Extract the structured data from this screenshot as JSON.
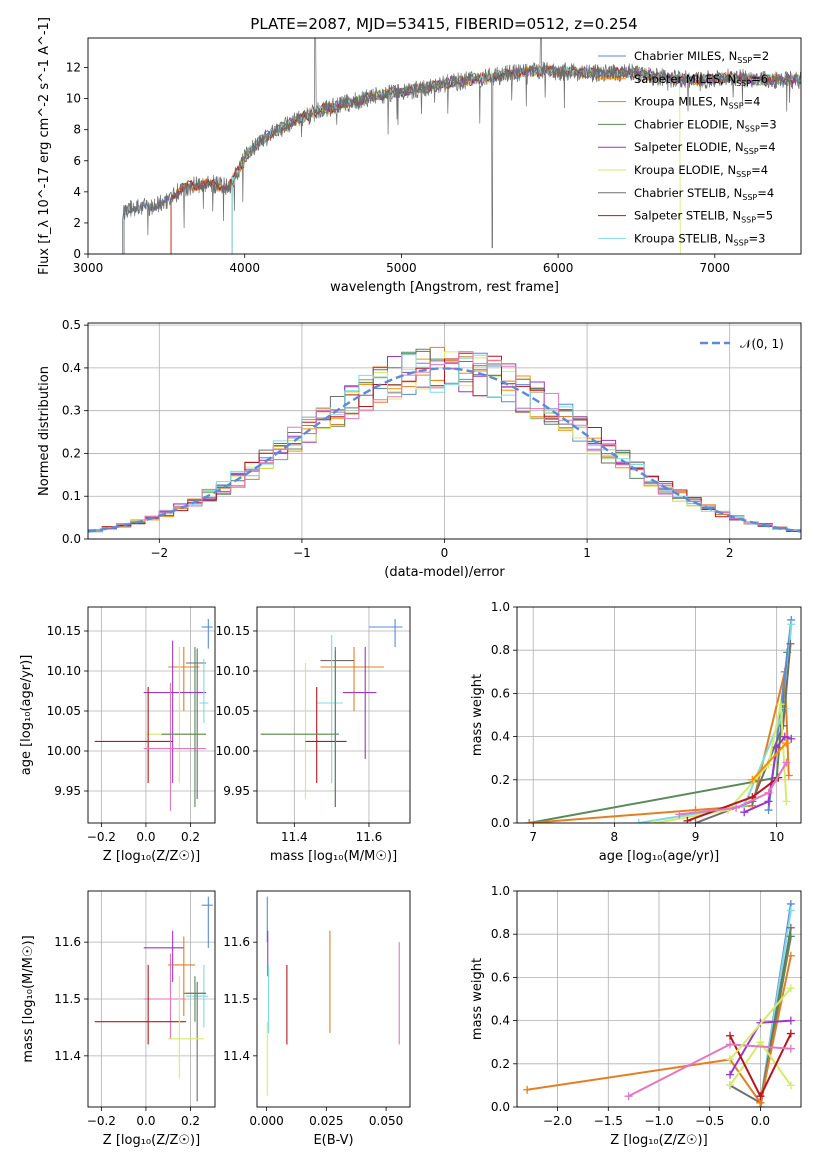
{
  "title": "PLATE=2087, MJD=53415, FIBERID=0512, z=0.254",
  "colors": {
    "cm": "#5b8bd6",
    "sm": "#ff8c00",
    "km": "#e37f22",
    "ce": "#5a8a5a",
    "se": "#9a37c5",
    "ke": "#d6ea6b",
    "cs": "#6e6e6e",
    "ss": "#b5171d",
    "ks": "#7fdbe3",
    "extra_pink": "#e377c2",
    "extra_gray": "#4d4d4d"
  },
  "legend": {
    "spectrum": [
      {
        "key": "cm",
        "text": "Chabrier MILES, N",
        "sub": "SSP",
        "val": "=2"
      },
      {
        "key": "sm",
        "text": "Salpeter MILES, N",
        "sub": "SSP",
        "val": "=6"
      },
      {
        "key": "km",
        "text": "Kroupa MILES, N",
        "sub": "SSP",
        "val": "=4"
      },
      {
        "key": "ce",
        "text": "Chabrier ELODIE, N",
        "sub": "SSP",
        "val": "=3"
      },
      {
        "key": "se",
        "text": "Salpeter ELODIE, N",
        "sub": "SSP",
        "val": "=4"
      },
      {
        "key": "ke",
        "text": "Kroupa ELODIE, N",
        "sub": "SSP",
        "val": "=4"
      },
      {
        "key": "cs",
        "text": "Chabrier STELIB, N",
        "sub": "SSP",
        "val": "=4"
      },
      {
        "key": "ss",
        "text": "Salpeter STELIB, N",
        "sub": "SSP",
        "val": "=5"
      },
      {
        "key": "ks",
        "text": "Kroupa STELIB, N",
        "sub": "SSP",
        "val": "=3"
      }
    ],
    "histogram": "𝒩(0, 1)"
  },
  "chart_data": [
    {
      "id": "spectrum",
      "type": "line",
      "xlabel": "wavelength [Angstrom, rest frame]",
      "ylabel": "Flux [f_λ 10^-17 erg cm^-2 s^-1 A^-1]",
      "xlim": [
        3000,
        7550
      ],
      "ylim": [
        0,
        13.9
      ],
      "xticks": [
        3000,
        4000,
        5000,
        6000,
        7000
      ],
      "yticks": [
        0,
        2,
        4,
        6,
        8,
        10,
        12
      ],
      "grid": false,
      "legend_position": "top-right",
      "data_continuum": {
        "x": [
          3220,
          3300,
          3400,
          3500,
          3600,
          3700,
          3800,
          3900,
          4000,
          4100,
          4300,
          4500,
          4700,
          4900,
          5100,
          5300,
          5500,
          5700,
          5900,
          6100,
          6300,
          6500,
          6700,
          6900,
          7100,
          7300
        ],
        "y": [
          2.7,
          3.0,
          3.0,
          3.4,
          4.2,
          4.5,
          4.5,
          4.3,
          6.2,
          7.3,
          8.5,
          9.3,
          9.8,
          10.3,
          10.6,
          11.0,
          11.3,
          11.6,
          11.8,
          11.7,
          11.6,
          11.7,
          11.3,
          11.2,
          11.4,
          11.2
        ]
      },
      "model_starts": {
        "cm": 3230,
        "sm": 3530,
        "km": 3530,
        "ce": 3920,
        "se": 3920,
        "ke": 3920,
        "cs": 3230,
        "ss": 3530,
        "ks": 3920
      },
      "model_end_ke": 6780
    },
    {
      "id": "residual_hist",
      "type": "bar",
      "xlabel": "(data-model)/error",
      "ylabel": "Normed distribution",
      "xlim": [
        -2.5,
        2.5
      ],
      "ylim": [
        0,
        0.505
      ],
      "xticks": [
        -2,
        -1,
        0,
        1,
        2
      ],
      "yticks": [
        0.0,
        0.1,
        0.2,
        0.3,
        0.4,
        0.5
      ],
      "grid": true,
      "legend_position": "top-right",
      "bin_width": 0.1,
      "bin_start": -2.5,
      "series_keys": [
        "cm",
        "sm",
        "km",
        "ce",
        "se",
        "ke",
        "cs",
        "ss",
        "ks",
        "extra_pink"
      ],
      "reference_curve": "normal(0,1)"
    },
    {
      "id": "age_vs_Z",
      "type": "scatter",
      "xlabel": "Z [log10(Z/Z☉)]",
      "ylabel": "age  [log10(age/yr)]",
      "xlim": [
        -0.26,
        0.31
      ],
      "ylim": [
        9.91,
        10.18
      ],
      "xticks": [
        -0.2,
        0.0,
        0.2
      ],
      "xticklabels": [
        "−0.2",
        "0.0",
        "0.2"
      ],
      "yticks": [
        9.95,
        10.0,
        10.05,
        10.1,
        10.15
      ],
      "grid": true,
      "points": [
        {
          "k": "cm",
          "x": 0.28,
          "y": 10.155,
          "ex": [
            0.25,
            0.3
          ],
          "ey": [
            10.128,
            10.165
          ]
        },
        {
          "k": "km",
          "x": 0.17,
          "y": 10.105,
          "ex": [
            0.1,
            0.24
          ],
          "ey": [
            10.05,
            10.13
          ]
        },
        {
          "k": "cs",
          "x": 0.23,
          "y": 10.11,
          "ex": [
            0.18,
            0.27
          ],
          "ey": [
            9.94,
            10.128
          ]
        },
        {
          "k": "se",
          "x": 0.12,
          "y": 10.073,
          "ex": [
            -0.01,
            0.27
          ],
          "ey": [
            9.96,
            10.138
          ]
        },
        {
          "k": "ks",
          "x": 0.26,
          "y": 10.06,
          "ex": [
            0.24,
            0.28
          ],
          "ey": [
            10.035,
            10.115
          ]
        },
        {
          "k": "ke",
          "x": 0.15,
          "y": 10.021,
          "ex": [
            0.0,
            0.27
          ],
          "ey": [
            9.96,
            10.13
          ]
        },
        {
          "k": "ss",
          "x": 0.01,
          "y": 10.012,
          "ex": [
            -0.23,
            0.12
          ],
          "ey": [
            9.96,
            10.08
          ]
        },
        {
          "k": "extra_pink",
          "x": 0.11,
          "y": 10.003,
          "ex": [
            -0.01,
            0.27
          ],
          "ey": [
            9.925,
            10.085
          ]
        },
        {
          "k": "ce",
          "x": 0.22,
          "y": 10.021,
          "ex": [
            0.07,
            0.27
          ],
          "ey": [
            9.93,
            10.13
          ]
        }
      ]
    },
    {
      "id": "age_vs_mass",
      "type": "scatter",
      "xlabel": "mass [log10(M/M☉)]",
      "ylabel": "",
      "xlim": [
        11.3,
        11.71
      ],
      "ylim": [
        9.91,
        10.18
      ],
      "xticks": [
        11.4,
        11.6
      ],
      "yticks": [
        9.95,
        10.0,
        10.05,
        10.1,
        10.15
      ],
      "grid": true,
      "points": [
        {
          "k": "cm",
          "x": 11.67,
          "y": 10.155,
          "ex": [
            11.6,
            11.69
          ],
          "ey": [
            10.13,
            10.165
          ]
        },
        {
          "k": "km",
          "x": 11.56,
          "y": 10.105,
          "ex": [
            11.47,
            11.64
          ],
          "ey": [
            10.05,
            10.13
          ]
        },
        {
          "k": "cs",
          "x": 11.51,
          "y": 10.113,
          "ex": [
            11.47,
            11.56
          ],
          "ey": [
            9.93,
            10.125
          ]
        },
        {
          "k": "ks",
          "x": 11.5,
          "y": 10.06,
          "ex": [
            11.46,
            11.53
          ],
          "ey": [
            9.96,
            10.145
          ]
        },
        {
          "k": "se",
          "x": 11.59,
          "y": 10.073,
          "ex": [
            11.53,
            11.62
          ],
          "ey": [
            9.99,
            10.13
          ]
        },
        {
          "k": "ke",
          "x": 11.43,
          "y": 10.021,
          "ex": [
            11.31,
            11.49
          ],
          "ey": [
            9.94,
            10.11
          ]
        },
        {
          "k": "ss",
          "x": 11.46,
          "y": 10.012,
          "ex": [
            11.43,
            11.54
          ],
          "ey": [
            9.96,
            10.08
          ]
        },
        {
          "k": "ce",
          "x": 11.51,
          "y": 10.021,
          "ex": [
            11.31,
            11.52
          ],
          "ey": [
            9.93,
            10.13
          ]
        }
      ]
    },
    {
      "id": "weight_vs_age",
      "type": "line",
      "xlabel": "age  [log10(age/yr)]",
      "ylabel": "mass weight",
      "xlim": [
        6.8,
        10.3
      ],
      "ylim": [
        0,
        1.0
      ],
      "xticks": [
        7,
        8,
        9,
        10
      ],
      "yticks": [
        0.0,
        0.2,
        0.4,
        0.6,
        0.8,
        1.0
      ],
      "grid": true,
      "series": [
        {
          "k": "ce",
          "x": [
            6.95,
            10.0,
            10.13
          ],
          "y": [
            0.0,
            0.21,
            0.79
          ]
        },
        {
          "k": "km",
          "x": [
            6.95,
            9.0,
            9.7,
            10.1,
            10.15
          ],
          "y": [
            0.0,
            0.06,
            0.08,
            0.7,
            0.22
          ]
        },
        {
          "k": "cm",
          "x": [
            9.9,
            10.18
          ],
          "y": [
            0.06,
            0.94
          ]
        },
        {
          "k": "ks",
          "x": [
            8.3,
            9.6,
            10.1,
            10.18
          ],
          "y": [
            0.0,
            0.08,
            0.53,
            0.92
          ]
        },
        {
          "k": "cs",
          "x": [
            9.0,
            9.7,
            10.08,
            10.17
          ],
          "y": [
            0.0,
            0.1,
            0.45,
            0.83
          ]
        },
        {
          "k": "ke",
          "x": [
            8.5,
            9.4,
            9.9,
            10.05,
            10.12
          ],
          "y": [
            0.0,
            0.06,
            0.27,
            0.55,
            0.1
          ]
        },
        {
          "k": "se",
          "x": [
            9.6,
            9.9,
            10.0,
            10.1,
            10.18
          ],
          "y": [
            0.05,
            0.1,
            0.35,
            0.4,
            0.39
          ]
        },
        {
          "k": "ss",
          "x": [
            8.9,
            9.7,
            10.02
          ],
          "y": [
            0.01,
            0.12,
            0.21
          ]
        },
        {
          "k": "extra_pink",
          "x": [
            8.8,
            9.5,
            9.9,
            10.12
          ],
          "y": [
            0.04,
            0.07,
            0.14,
            0.28
          ]
        },
        {
          "k": "sm",
          "x": [
            9.7,
            10.12
          ],
          "y": [
            0.2,
            0.37
          ]
        }
      ]
    },
    {
      "id": "mass_vs_Z",
      "type": "scatter",
      "xlabel": "Z [log10(Z/Z☉)]",
      "ylabel": "mass [log10(M/M☉)]",
      "xlim": [
        -0.26,
        0.31
      ],
      "ylim": [
        11.31,
        11.69
      ],
      "xticks": [
        -0.2,
        0.0,
        0.2
      ],
      "xticklabels": [
        "−0.2",
        "0.0",
        "0.2"
      ],
      "yticks": [
        11.4,
        11.5,
        11.6
      ],
      "grid": true,
      "points": [
        {
          "k": "cm",
          "x": 0.28,
          "y": 11.665,
          "ex": [
            0.25,
            0.3
          ],
          "ey": [
            11.59,
            11.68
          ]
        },
        {
          "k": "se",
          "x": 0.12,
          "y": 11.59,
          "ex": [
            -0.01,
            0.17
          ],
          "ey": [
            11.53,
            11.62
          ]
        },
        {
          "k": "km",
          "x": 0.17,
          "y": 11.56,
          "ex": [
            0.1,
            0.22
          ],
          "ey": [
            11.47,
            11.61
          ]
        },
        {
          "k": "ks",
          "x": 0.26,
          "y": 11.505,
          "ex": [
            0.18,
            0.28
          ],
          "ey": [
            11.45,
            11.56
          ]
        },
        {
          "k": "cs",
          "x": 0.23,
          "y": 11.51,
          "ex": [
            0.18,
            0.27
          ],
          "ey": [
            11.32,
            11.53
          ]
        },
        {
          "k": "ce",
          "x": 0.22,
          "y": 11.51,
          "ex": [
            0.17,
            0.27
          ],
          "ey": [
            11.46,
            11.54
          ]
        },
        {
          "k": "extra_pink",
          "x": 0.11,
          "y": 11.5,
          "ex": [
            -0.01,
            0.18
          ],
          "ey": [
            11.43,
            11.58
          ]
        },
        {
          "k": "ss",
          "x": 0.01,
          "y": 11.46,
          "ex": [
            -0.23,
            0.18
          ],
          "ey": [
            11.42,
            11.56
          ]
        },
        {
          "k": "ke",
          "x": 0.15,
          "y": 11.43,
          "ex": [
            0.1,
            0.26
          ],
          "ey": [
            11.36,
            11.54
          ]
        }
      ]
    },
    {
      "id": "mass_vs_EBV",
      "type": "scatter",
      "xlabel": "E(B-V)",
      "ylabel": "",
      "xlim": [
        -0.004,
        0.06
      ],
      "ylim": [
        11.31,
        11.69
      ],
      "xticks": [
        0.0,
        0.025,
        0.05
      ],
      "xticklabels": [
        "0.000",
        "0.025",
        "0.050"
      ],
      "yticks": [
        11.4,
        11.5,
        11.6
      ],
      "grid": false,
      "points": [
        {
          "k": "cm",
          "x": 0.0003,
          "y": 11.66,
          "ex": [
            0.0003,
            0.0003
          ],
          "ey": [
            11.6,
            11.68
          ]
        },
        {
          "k": "se",
          "x": 0.0005,
          "y": 11.59,
          "ex": [
            0.0005,
            0.0005
          ],
          "ey": [
            11.54,
            11.62
          ]
        },
        {
          "k": "ks",
          "x": 0.0008,
          "y": 11.5,
          "ex": [
            0.0008,
            0.0008
          ],
          "ey": [
            11.44,
            11.56
          ]
        },
        {
          "k": "ke",
          "x": 0.0003,
          "y": 11.4,
          "ex": [
            0.0003,
            0.0003
          ],
          "ey": [
            11.33,
            11.46
          ]
        },
        {
          "k": "ss",
          "x": 0.0085,
          "y": 11.48,
          "ex": [
            0.0085,
            0.0085
          ],
          "ey": [
            11.42,
            11.56
          ]
        },
        {
          "k": "km",
          "x": 0.0265,
          "y": 11.53,
          "ex": [
            0.0265,
            0.0265
          ],
          "ey": [
            11.44,
            11.62
          ]
        },
        {
          "k": "extra_pink",
          "x": 0.0555,
          "y": 11.51,
          "ex": [
            0.0555,
            0.0555
          ],
          "ey": [
            11.42,
            11.6
          ]
        }
      ]
    },
    {
      "id": "weight_vs_Z",
      "type": "line",
      "xlabel": "Z [log10(Z/Z☉)]",
      "ylabel": "mass weight",
      "xlim": [
        -2.4,
        0.4
      ],
      "ylim": [
        0,
        1.0
      ],
      "xticks": [
        -2.0,
        -1.5,
        -1.0,
        -0.5,
        0.0
      ],
      "xticklabels": [
        "−2.0",
        "−1.5",
        "−1.0",
        "−0.5",
        "0.0"
      ],
      "yticks": [
        0.0,
        0.2,
        0.4,
        0.6,
        0.8,
        1.0
      ],
      "grid": true,
      "series": [
        {
          "k": "cm",
          "x": [
            0.0,
            0.3
          ],
          "y": [
            0.02,
            0.94
          ]
        },
        {
          "k": "ks",
          "x": [
            0.0,
            0.3
          ],
          "y": [
            0.02,
            0.91
          ]
        },
        {
          "k": "cs",
          "x": [
            -0.3,
            0.0,
            0.3
          ],
          "y": [
            0.1,
            0.02,
            0.83
          ]
        },
        {
          "k": "ce",
          "x": [
            0.0,
            0.3
          ],
          "y": [
            0.0,
            0.79
          ]
        },
        {
          "k": "km",
          "x": [
            -2.3,
            -0.3,
            0.0,
            0.3
          ],
          "y": [
            0.08,
            0.22,
            0.02,
            0.7
          ]
        },
        {
          "k": "ke",
          "x": [
            -0.3,
            0.0,
            0.3
          ],
          "y": [
            0.1,
            0.3,
            0.1
          ]
        },
        {
          "k": "se",
          "x": [
            -0.3,
            0.0,
            0.3
          ],
          "y": [
            0.15,
            0.39,
            0.4
          ]
        },
        {
          "k": "ss",
          "x": [
            -0.3,
            0.0,
            0.3
          ],
          "y": [
            0.33,
            0.05,
            0.34
          ]
        },
        {
          "k": "extra_pink",
          "x": [
            -1.3,
            -0.3,
            0.3
          ],
          "y": [
            0.05,
            0.29,
            0.27
          ]
        },
        {
          "k": "ke",
          "x": [
            -0.3,
            0.3
          ],
          "y": [
            0.22,
            0.55
          ]
        }
      ]
    }
  ]
}
